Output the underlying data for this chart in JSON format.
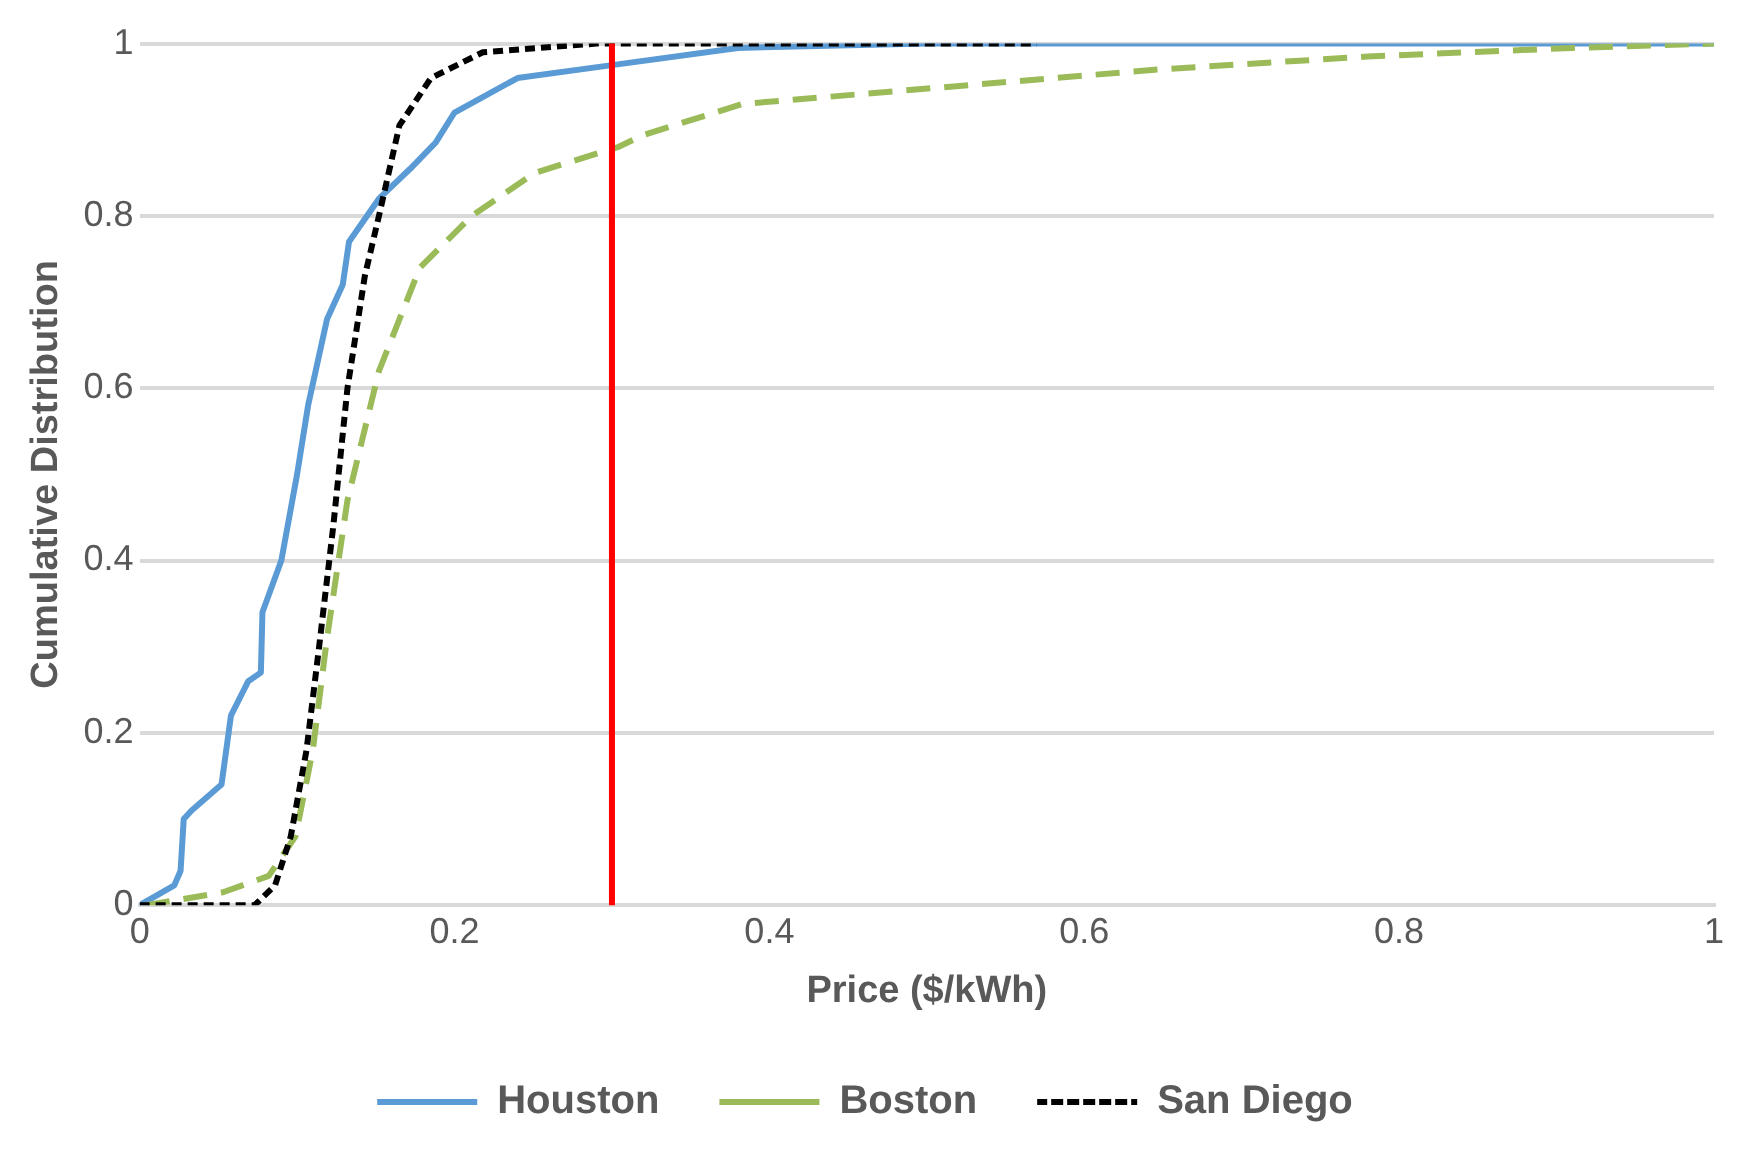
{
  "chart_data": {
    "type": "line",
    "xlabel": "Price ($/kWh)",
    "ylabel": "Cumulative Distribution",
    "xlim": [
      0,
      1
    ],
    "ylim": [
      0,
      1
    ],
    "xticks": [
      0,
      0.2,
      0.4,
      0.6,
      0.8,
      1
    ],
    "yticks": [
      0,
      0.2,
      0.4,
      0.6,
      0.8,
      1
    ],
    "grid": "y",
    "legend": "bottom",
    "marker": "none",
    "ref_lines": [
      {
        "axis": "x",
        "value": 0.3,
        "color": "#ff0000",
        "line_style": "solid"
      }
    ],
    "series": [
      {
        "name": "Houston",
        "color": "#5b9bd5",
        "line_style": "solid",
        "x": [
          0,
          0.022,
          0.026,
          0.028,
          0.033,
          0.052,
          0.055,
          0.058,
          0.069,
          0.077,
          0.078,
          0.09,
          0.1,
          0.107,
          0.119,
          0.129,
          0.133,
          0.152,
          0.172,
          0.188,
          0.2,
          0.24,
          0.3,
          0.38,
          0.5,
          1
        ],
        "values": [
          0,
          0.023,
          0.04,
          0.1,
          0.11,
          0.14,
          0.18,
          0.22,
          0.26,
          0.27,
          0.34,
          0.4,
          0.5,
          0.58,
          0.68,
          0.72,
          0.77,
          0.82,
          0.855,
          0.885,
          0.92,
          0.96,
          0.975,
          0.995,
          1,
          1
        ]
      },
      {
        "name": "Boston",
        "color": "#9bbb59",
        "line_style": "dashed",
        "x": [
          0.004,
          0.053,
          0.082,
          0.099,
          0.11,
          0.119,
          0.132,
          0.152,
          0.178,
          0.211,
          0.251,
          0.304,
          0.32,
          0.383,
          0.515,
          0.647,
          0.78,
          0.91,
          1
        ],
        "values": [
          0,
          0.015,
          0.034,
          0.08,
          0.18,
          0.31,
          0.47,
          0.62,
          0.74,
          0.8,
          0.85,
          0.88,
          0.894,
          0.93,
          0.95,
          0.97,
          0.985,
          0.995,
          1
        ]
      },
      {
        "name": "San Diego",
        "color": "#000000",
        "line_style": "dotted",
        "x": [
          0,
          0.03,
          0.073,
          0.086,
          0.096,
          0.106,
          0.114,
          0.123,
          0.132,
          0.143,
          0.152,
          0.165,
          0.185,
          0.218,
          0.29,
          0.57
        ],
        "values": [
          0,
          0,
          0,
          0.023,
          0.08,
          0.18,
          0.3,
          0.44,
          0.6,
          0.73,
          0.8,
          0.905,
          0.96,
          0.99,
          1,
          1
        ]
      }
    ]
  }
}
